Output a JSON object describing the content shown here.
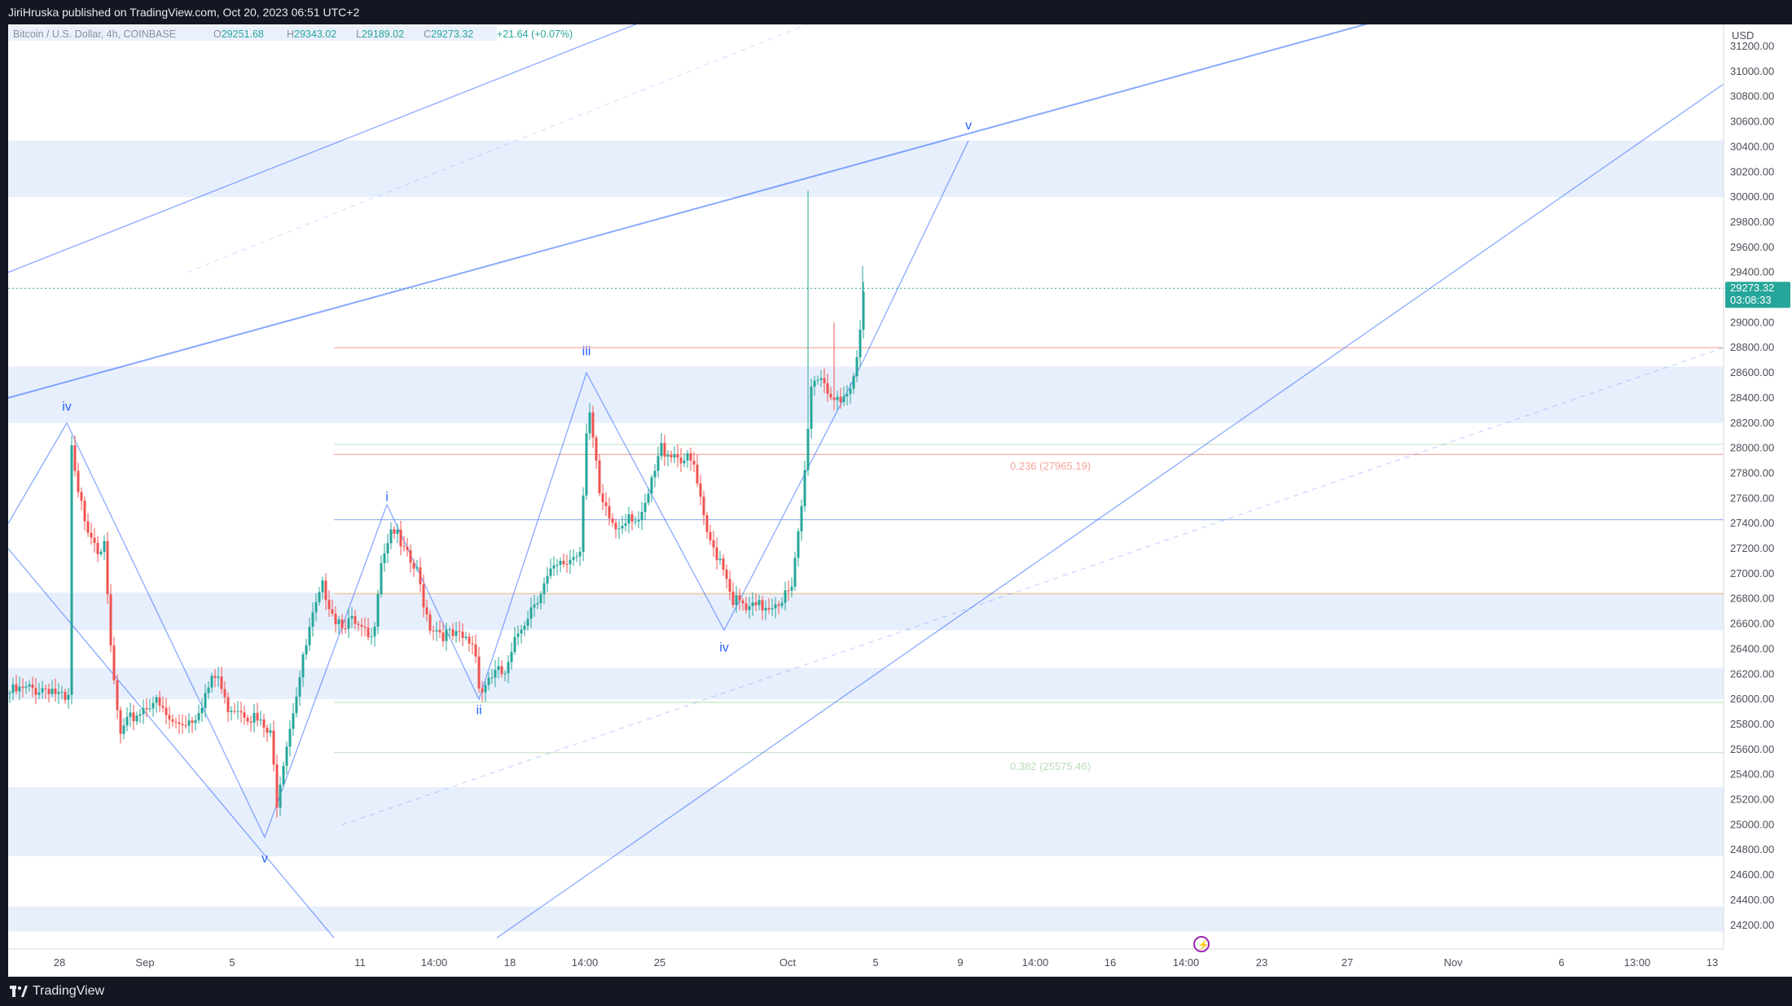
{
  "publisher": "JiriHruska published on TradingView.com, Oct 20, 2023 06:51 UTC+2",
  "brand": "TradingView",
  "legend": {
    "symbol": "Bitcoin / U.S. Dollar, 4h, COINBASE",
    "o_label": "O",
    "o": "29251.68",
    "h_label": "H",
    "h": "29343.02",
    "l_label": "L",
    "l": "29189.02",
    "c_label": "C",
    "c": "29273.32",
    "change": "+21.64 (+0.07%)"
  },
  "price_axis": {
    "currency": "USD",
    "ticks": [
      "31200.00",
      "31000.00",
      "30800.00",
      "30600.00",
      "30400.00",
      "30200.00",
      "30000.00",
      "29800.00",
      "29600.00",
      "29400.00",
      "29000.00",
      "28800.00",
      "28600.00",
      "28400.00",
      "28200.00",
      "28000.00",
      "27800.00",
      "27600.00",
      "27400.00",
      "27200.00",
      "27000.00",
      "26800.00",
      "26600.00",
      "26400.00",
      "26200.00",
      "26000.00",
      "25800.00",
      "25600.00",
      "25400.00",
      "25200.00",
      "25000.00",
      "24800.00",
      "24600.00",
      "24400.00",
      "24200.00"
    ],
    "last_price": "29273.32",
    "countdown": "03:08:33"
  },
  "time_axis": [
    "28",
    "Sep",
    "5",
    "11",
    "14:00",
    "18",
    "14:00",
    "25",
    "Oct",
    "5",
    "9",
    "14:00",
    "16",
    "14:00",
    "23",
    "27",
    "Nov",
    "6",
    "13:00",
    "13"
  ],
  "fib_labels": [
    "0.236 (27965.19)",
    "0.382 (25575.46)"
  ],
  "colors": {
    "up": "#26a69a",
    "down": "#ef5350",
    "zone": "#e8effc",
    "line": "#2962ff",
    "price_tag": "#26a69a"
  },
  "chart_data": {
    "type": "candlestick",
    "title": "Bitcoin / U.S. Dollar, 4h, COINBASE",
    "ylim": [
      24100,
      31400
    ],
    "x_ticks": [
      "28",
      "Sep",
      "5",
      "11",
      "14:00",
      "18",
      "14:00",
      "25",
      "Oct",
      "5",
      "9",
      "14:00",
      "16",
      "14:00",
      "23",
      "27",
      "Nov",
      "6",
      "13:00",
      "13"
    ],
    "anchors": [
      [
        0,
        26050
      ],
      [
        50,
        26100
      ],
      [
        70,
        25950
      ],
      [
        75,
        26050
      ],
      [
        76,
        28000
      ],
      [
        82,
        27650
      ],
      [
        95,
        27400
      ],
      [
        110,
        27200
      ],
      [
        116,
        27300
      ],
      [
        122,
        26500
      ],
      [
        135,
        25700
      ],
      [
        150,
        25850
      ],
      [
        175,
        26000
      ],
      [
        200,
        25800
      ],
      [
        225,
        25850
      ],
      [
        245,
        26100
      ],
      [
        255,
        26200
      ],
      [
        265,
        25950
      ],
      [
        280,
        25950
      ],
      [
        300,
        25850
      ],
      [
        320,
        25700
      ],
      [
        328,
        25200
      ],
      [
        335,
        25500
      ],
      [
        350,
        26000
      ],
      [
        370,
        26600
      ],
      [
        385,
        26900
      ],
      [
        400,
        26650
      ],
      [
        420,
        26600
      ],
      [
        445,
        26450
      ],
      [
        455,
        27100
      ],
      [
        470,
        27400
      ],
      [
        480,
        27200
      ],
      [
        500,
        27000
      ],
      [
        515,
        26600
      ],
      [
        540,
        26500
      ],
      [
        570,
        26450
      ],
      [
        578,
        26050
      ],
      [
        590,
        26200
      ],
      [
        610,
        26200
      ],
      [
        625,
        26550
      ],
      [
        645,
        26800
      ],
      [
        665,
        27000
      ],
      [
        685,
        27100
      ],
      [
        700,
        27200
      ],
      [
        710,
        28400
      ],
      [
        725,
        27550
      ],
      [
        745,
        27350
      ],
      [
        760,
        27500
      ],
      [
        775,
        27400
      ],
      [
        800,
        28000
      ],
      [
        820,
        27950
      ],
      [
        840,
        27850
      ],
      [
        855,
        27300
      ],
      [
        875,
        27100
      ],
      [
        888,
        26800
      ],
      [
        905,
        26700
      ],
      [
        930,
        26750
      ],
      [
        960,
        26850
      ],
      [
        975,
        27700
      ],
      [
        983,
        28500
      ],
      [
        995,
        28600
      ],
      [
        1010,
        28400
      ],
      [
        1020,
        28300
      ],
      [
        1035,
        28500
      ],
      [
        1040,
        28750
      ],
      [
        1048,
        29273
      ]
    ],
    "zones": [
      [
        30000,
        30450
      ],
      [
        28200,
        28650
      ],
      [
        26550,
        26850
      ],
      [
        26000,
        26250
      ],
      [
        24750,
        25300
      ],
      [
        24150,
        24350
      ]
    ],
    "levels": [
      {
        "price": 28800,
        "color": "#f3a59b"
      },
      {
        "price": 27950,
        "color": "#f3a59b"
      },
      {
        "price": 28030,
        "color": "#cfe6cf"
      },
      {
        "price": 27430,
        "color": "#9ab6ee"
      },
      {
        "price": 26840,
        "color": "#f5c98d"
      },
      {
        "price": 25975,
        "color": "#b8e0b8"
      },
      {
        "price": 25575,
        "color": "#cfe6cf"
      }
    ],
    "wave_labels": [
      {
        "text": "iv",
        "x": 72,
        "price": 28300
      },
      {
        "text": "v",
        "x": 315,
        "price": 24700
      },
      {
        "text": "i",
        "x": 465,
        "price": 27580
      },
      {
        "text": "ii",
        "x": 578,
        "price": 25880
      },
      {
        "text": "iii",
        "x": 710,
        "price": 28740
      },
      {
        "text": "iv",
        "x": 879,
        "price": 26380
      },
      {
        "text": "v",
        "x": 1179,
        "price": 30540
      }
    ],
    "wave_path": [
      [
        0,
        27400
      ],
      [
        72,
        28200
      ],
      [
        315,
        24900
      ],
      [
        465,
        27550
      ],
      [
        578,
        26000
      ],
      [
        710,
        28600
      ],
      [
        879,
        26550
      ],
      [
        1050,
        28700
      ],
      [
        1179,
        30450
      ]
    ]
  }
}
